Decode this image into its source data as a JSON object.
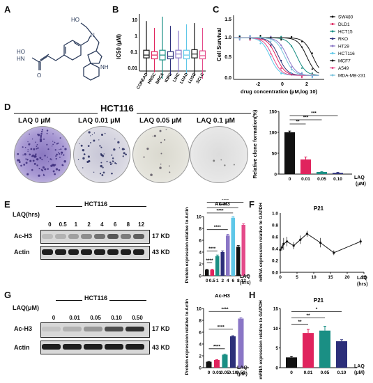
{
  "panels": {
    "A": "A",
    "B": "B",
    "C": "C",
    "D": "D",
    "E": "E",
    "F": "F",
    "G": "G",
    "H": "H"
  },
  "colors": {
    "black": "#111111",
    "crimson": "#e0245e",
    "teal": "#1a8f84",
    "navy": "#2c2f7a",
    "purple": "#8a76c6",
    "skyblue": "#5ec7e8",
    "pink": "#e44b8a",
    "lightblue": "#7ac3dd"
  },
  "panelA": {
    "labels": {
      "ho": "HO",
      "hn": "HN",
      "o": "O",
      "n": "N",
      "nh": "NH"
    }
  },
  "panelB": {
    "ylabel": "IC50 (μM)",
    "yticks": [
      "10",
      "1",
      "0.1",
      "0.01"
    ],
    "categories": [
      "COREAD",
      "HNSC",
      "BRCA",
      "KIRC",
      "LIHC",
      "LUAD",
      "LUSC",
      "SCLC"
    ],
    "box_colors": [
      "#111111",
      "#e0245e",
      "#1a8f84",
      "#2c2f7a",
      "#8a76c6",
      "#5ec7e8",
      "#111111",
      "#e44b8a"
    ]
  },
  "panelC": {
    "ylabel": "Cell Survival",
    "xlabel": "drug concentration (μM,log 10)",
    "yticks": [
      "1.5",
      "1.0",
      "0.5",
      "0.0"
    ],
    "xticks": [
      "-2",
      "0",
      "2"
    ],
    "legend": [
      {
        "name": "SW480",
        "color": "#111111"
      },
      {
        "name": "DLD1",
        "color": "#e0245e"
      },
      {
        "name": "HCT15",
        "color": "#1a8f84"
      },
      {
        "name": "RKO",
        "color": "#2c2f7a"
      },
      {
        "name": "HT29",
        "color": "#8a76c6"
      },
      {
        "name": "HCT116",
        "color": "#5ec7e8"
      },
      {
        "name": "MCF7",
        "color": "#111111"
      },
      {
        "name": "A549",
        "color": "#e44b8a"
      },
      {
        "name": "MDA-MB-231",
        "color": "#7ac3dd"
      }
    ]
  },
  "panelD": {
    "title": "HCT116",
    "dish_labels": [
      "LAQ 0 μM",
      "LAQ 0.01 μM",
      "LAQ 0.05 μM",
      "LAQ 0.1 μM"
    ],
    "ylabel": "Relative clone formation(%)",
    "yticks": [
      "150",
      "100",
      "50",
      "0"
    ],
    "xticks": [
      "0",
      "0.01",
      "0.05",
      "0.10"
    ],
    "xunit": "LAQ\n(μM)",
    "sig": [
      "***",
      "**",
      "***"
    ]
  },
  "panelE": {
    "title": "HCT116",
    "time_label": "LAQ(hrs)",
    "times": [
      "0",
      "0.5",
      "1",
      "2",
      "4",
      "6",
      "8",
      "12"
    ],
    "rows": [
      "Ac-H3",
      "Actin"
    ],
    "kd": [
      "17 KD",
      "43 KD"
    ],
    "chart_title": "Ac-H3",
    "ylabel": "Protein expression relative to Actin",
    "yticks": [
      "10",
      "8",
      "6",
      "4",
      "2",
      "0"
    ],
    "xunit": "LAQ (hrs)",
    "sig": [
      "****",
      "****",
      "****",
      "****",
      "****",
      "****"
    ]
  },
  "panelF": {
    "title": "P21",
    "ylabel": "mRNA expression relative to GAPDH",
    "yticks": [
      "1.0",
      "0.8",
      "0.6",
      "0.4",
      "0.2",
      "0.0"
    ],
    "xticks": [
      "0",
      "5",
      "10",
      "15",
      "20",
      "25"
    ],
    "xunit": "LAQ (hrs)"
  },
  "panelG": {
    "title": "HCT116",
    "dose_label": "LAQ(μM)",
    "doses": [
      "0",
      "0.01",
      "0.05",
      "0.10",
      "0.50"
    ],
    "rows": [
      "Ac-H3",
      "Actin"
    ],
    "kd": [
      "17 KD",
      "43 KD"
    ],
    "chart_title": "Ac-H3",
    "ylabel": "Protein expression relative to Actin",
    "yticks": [
      "10",
      "8",
      "6",
      "4",
      "2",
      "0"
    ],
    "xunit": "LAQ (μM)",
    "sig": [
      "****",
      "****",
      "****"
    ]
  },
  "panelH": {
    "title": "P21",
    "ylabel": "mRNA expression relative to GAPDH",
    "yticks": [
      "15",
      "10",
      "5",
      "0"
    ],
    "xticks": [
      "0",
      "0.01",
      "0.05",
      "0.10"
    ],
    "xunit": "LAQ (μM)",
    "sig": [
      "**",
      "**",
      "*"
    ]
  },
  "chart_data": [
    {
      "type": "bar",
      "categories": [
        "0",
        "0.01",
        "0.05",
        "0.10"
      ],
      "values": [
        100,
        35,
        5,
        3
      ],
      "errors": [
        3,
        6,
        1,
        1
      ],
      "ylim": [
        0,
        150
      ],
      "colors": [
        "#111111",
        "#e0245e",
        "#1a8f84",
        "#2c2f7a"
      ]
    },
    {
      "type": "bar",
      "categories": [
        "0",
        "0.5",
        "1",
        "2",
        "4",
        "6",
        "8",
        "12"
      ],
      "values": [
        1,
        1,
        3.3,
        4,
        6.8,
        9.8,
        4.9,
        8.6
      ],
      "errors": [
        0.1,
        0.1,
        0.2,
        0.2,
        0.2,
        0.2,
        0.2,
        0.2
      ],
      "ylim": [
        0,
        10
      ],
      "colors": [
        "#111111",
        "#e0245e",
        "#1a8f84",
        "#2c2f7a",
        "#8a76c6",
        "#5ec7e8",
        "#111111",
        "#e44b8a"
      ]
    },
    {
      "type": "line",
      "x": [
        0,
        0.5,
        1,
        2,
        4,
        6,
        8,
        12,
        16,
        24
      ],
      "y": [
        0.38,
        0.42,
        0.48,
        0.52,
        0.45,
        0.55,
        0.65,
        0.5,
        0.33,
        0.52
      ],
      "errors": [
        0.05,
        0.05,
        0.1,
        0.08,
        0.06,
        0.07,
        0.05,
        0.08,
        0.04,
        0.05
      ],
      "ylim": [
        0,
        1.0
      ],
      "xlim": [
        0,
        25
      ]
    },
    {
      "type": "bar",
      "categories": [
        "0",
        "0.01",
        "0.05",
        "0.10",
        "0.50"
      ],
      "values": [
        1,
        1.3,
        2.2,
        5.3,
        8.3
      ],
      "errors": [
        0.05,
        0.05,
        0.1,
        0.1,
        0.15
      ],
      "ylim": [
        0,
        10
      ],
      "colors": [
        "#111111",
        "#e0245e",
        "#1a8f84",
        "#2c2f7a",
        "#8a76c6"
      ]
    },
    {
      "type": "bar",
      "categories": [
        "0",
        "0.01",
        "0.05",
        "0.10"
      ],
      "values": [
        2.6,
        8.8,
        9.4,
        6.7
      ],
      "errors": [
        0.3,
        0.9,
        1.1,
        0.4
      ],
      "ylim": [
        0,
        15
      ],
      "colors": [
        "#111111",
        "#e0245e",
        "#1a8f84",
        "#2c2f7a"
      ]
    }
  ]
}
